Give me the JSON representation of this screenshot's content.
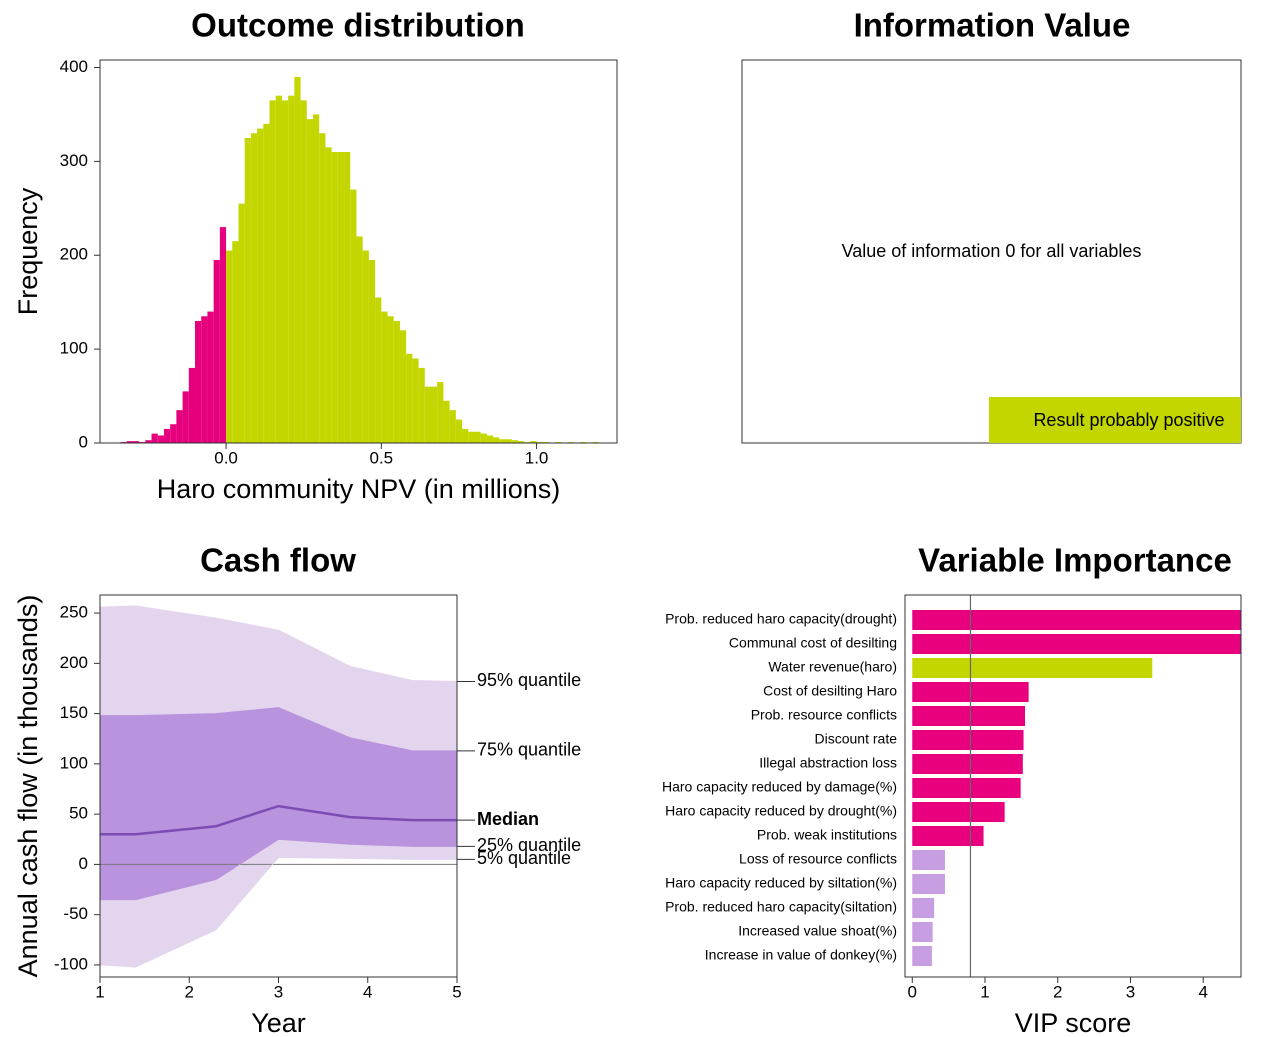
{
  "chart_data": [
    {
      "type": "histogram",
      "title": "Outcome distribution",
      "xlabel": "Haro community NPV (in millions)",
      "ylabel": "Frequency",
      "bins": [
        -0.34,
        -0.32,
        -0.3,
        -0.28,
        -0.26,
        -0.24,
        -0.22,
        -0.2,
        -0.18,
        -0.16,
        -0.14,
        -0.12,
        -0.1,
        -0.08,
        -0.06,
        -0.04,
        -0.02,
        0,
        0.02,
        0.04,
        0.06,
        0.08,
        0.1,
        0.12,
        0.14,
        0.16,
        0.18,
        0.2,
        0.22,
        0.24,
        0.26,
        0.28,
        0.3,
        0.32,
        0.34,
        0.36,
        0.38,
        0.4,
        0.42,
        0.44,
        0.46,
        0.48,
        0.5,
        0.52,
        0.54,
        0.56,
        0.58,
        0.6,
        0.62,
        0.64,
        0.66,
        0.68,
        0.7,
        0.72,
        0.74,
        0.76,
        0.78,
        0.8,
        0.82,
        0.84,
        0.86,
        0.88,
        0.9,
        0.92,
        0.94,
        0.96,
        0.98,
        1,
        1.02,
        1.04,
        1.06,
        1.08,
        1.1,
        1.12,
        1.14,
        1.16,
        1.18,
        1.2
      ],
      "values": [
        1,
        2,
        2,
        1,
        3,
        10,
        8,
        15,
        20,
        35,
        55,
        80,
        130,
        135,
        140,
        195,
        230,
        205,
        215,
        255,
        325,
        330,
        335,
        340,
        365,
        370,
        365,
        370,
        390,
        365,
        345,
        350,
        330,
        315,
        310,
        310,
        310,
        270,
        220,
        205,
        195,
        155,
        140,
        135,
        130,
        120,
        95,
        90,
        80,
        60,
        60,
        65,
        45,
        35,
        25,
        15,
        12,
        12,
        10,
        8,
        6,
        4,
        4,
        3,
        2,
        1,
        2,
        1,
        1,
        0,
        1,
        0,
        1,
        0,
        1,
        0,
        1
      ],
      "colors": [
        "#e6007e",
        "#c3d600"
      ],
      "xlim": [
        -0.406,
        1.259
      ],
      "ylim": [
        0,
        408
      ],
      "xticks": [
        {
          "value": 0,
          "label": "0.0"
        },
        0.5,
        {
          "value": 1,
          "label": "1.0"
        }
      ],
      "yticks": [
        0,
        100,
        200,
        300,
        400
      ]
    },
    {
      "type": "note",
      "title": "Information Value",
      "message": "Value of information 0 for all variables",
      "badge": {
        "label": "Result probably positive",
        "color": "#c3d600"
      }
    },
    {
      "type": "band",
      "title": "Cash flow",
      "xlabel": "Year",
      "ylabel": "Annual cash flow (in thousands)",
      "x": [
        1,
        1.4,
        2.3,
        3,
        3.8,
        4.5,
        5
      ],
      "series": [
        {
          "name": "95% quantile",
          "color": "#e4d5ef",
          "values": [
            256,
            257,
            245,
            233,
            197,
            183,
            182
          ]
        },
        {
          "name": "75% quantile",
          "color": "#b993dd",
          "values": [
            148,
            148,
            150,
            156,
            126,
            113,
            113
          ]
        },
        {
          "name": "Median",
          "color": "#7b4cb4",
          "values": [
            30,
            30,
            38,
            58,
            47,
            44,
            44
          ]
        },
        {
          "name": "25% quantile",
          "color": "#b993dd",
          "values": [
            -35,
            -35,
            -15,
            25,
            20,
            18,
            18
          ]
        },
        {
          "name": "5% quantile",
          "color": "#e4d5ef",
          "values": [
            -100,
            -102,
            -65,
            7,
            6,
            5,
            5
          ]
        }
      ],
      "hline": 0,
      "xlim": [
        1,
        5
      ],
      "ylim": [
        -112,
        268
      ],
      "xticks": [
        1,
        2,
        3,
        4,
        5
      ],
      "yticks": [
        -100,
        -50,
        0,
        50,
        100,
        150,
        200,
        250
      ]
    },
    {
      "type": "barh",
      "title": "Variable Importance",
      "xlabel": "VIP score",
      "categories": [
        "Prob. reduced haro capacity(drought)",
        "Communal cost of desilting",
        "Water revenue(haro)",
        "Cost of desilting Haro",
        "Prob. resource conflicts",
        "Discount rate",
        "Illegal abstraction loss",
        "Haro capacity reduced by damage(%)",
        "Haro capacity reduced by drought(%)",
        "Prob. weak institutions",
        "Loss of resource conflicts",
        "Haro capacity reduced by siltation(%)",
        "Prob. reduced haro capacity(siltation)",
        "Increased value shoat(%)",
        "Increase in value of donkey(%)"
      ],
      "values": [
        4.6,
        4.6,
        3.3,
        1.6,
        1.55,
        1.53,
        1.52,
        1.49,
        1.27,
        0.98,
        0.45,
        0.45,
        0.3,
        0.28,
        0.27
      ],
      "colors": [
        "#e8007f",
        "#e8007f",
        "#c3d600",
        "#e8007f",
        "#e8007f",
        "#e8007f",
        "#e8007f",
        "#e8007f",
        "#e8007f",
        "#e8007f",
        "#c79ee2",
        "#c79ee2",
        "#c79ee2",
        "#c79ee2",
        "#c79ee2"
      ],
      "vline": 0.8,
      "xlim": [
        -0.1,
        4.52
      ],
      "xticks": [
        0,
        1,
        2,
        3,
        4
      ]
    }
  ]
}
